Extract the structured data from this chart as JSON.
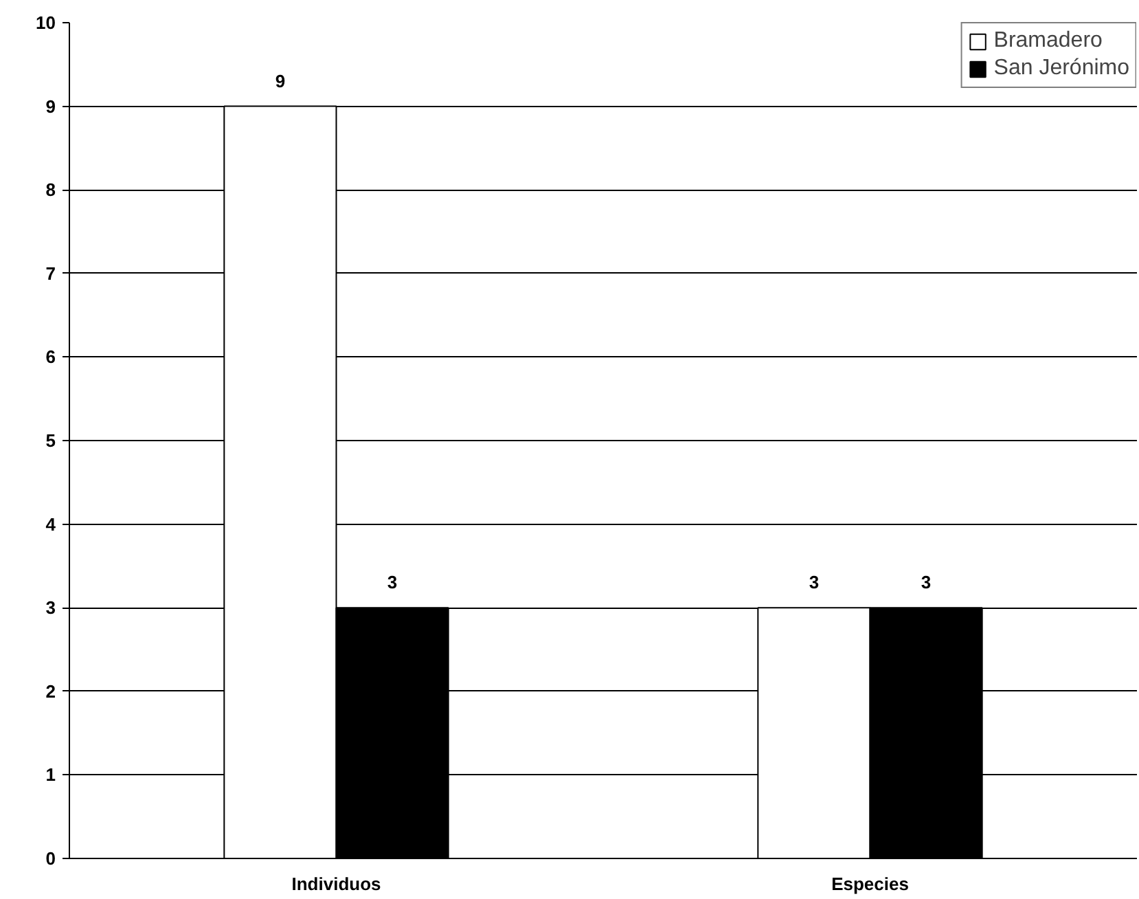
{
  "chart_data": {
    "type": "bar",
    "categories": [
      "Individuos",
      "Especies"
    ],
    "series": [
      {
        "name": "Bramadero",
        "color": "#ffffff",
        "values": [
          9,
          3
        ]
      },
      {
        "name": "San Jerónimo",
        "color": "#000000",
        "values": [
          3,
          3
        ]
      }
    ],
    "ylim": [
      0,
      10
    ],
    "yticks": [
      0,
      1,
      2,
      3,
      4,
      5,
      6,
      7,
      8,
      9,
      10
    ],
    "grid": "y",
    "legend": "top right",
    "data_labels": true
  }
}
